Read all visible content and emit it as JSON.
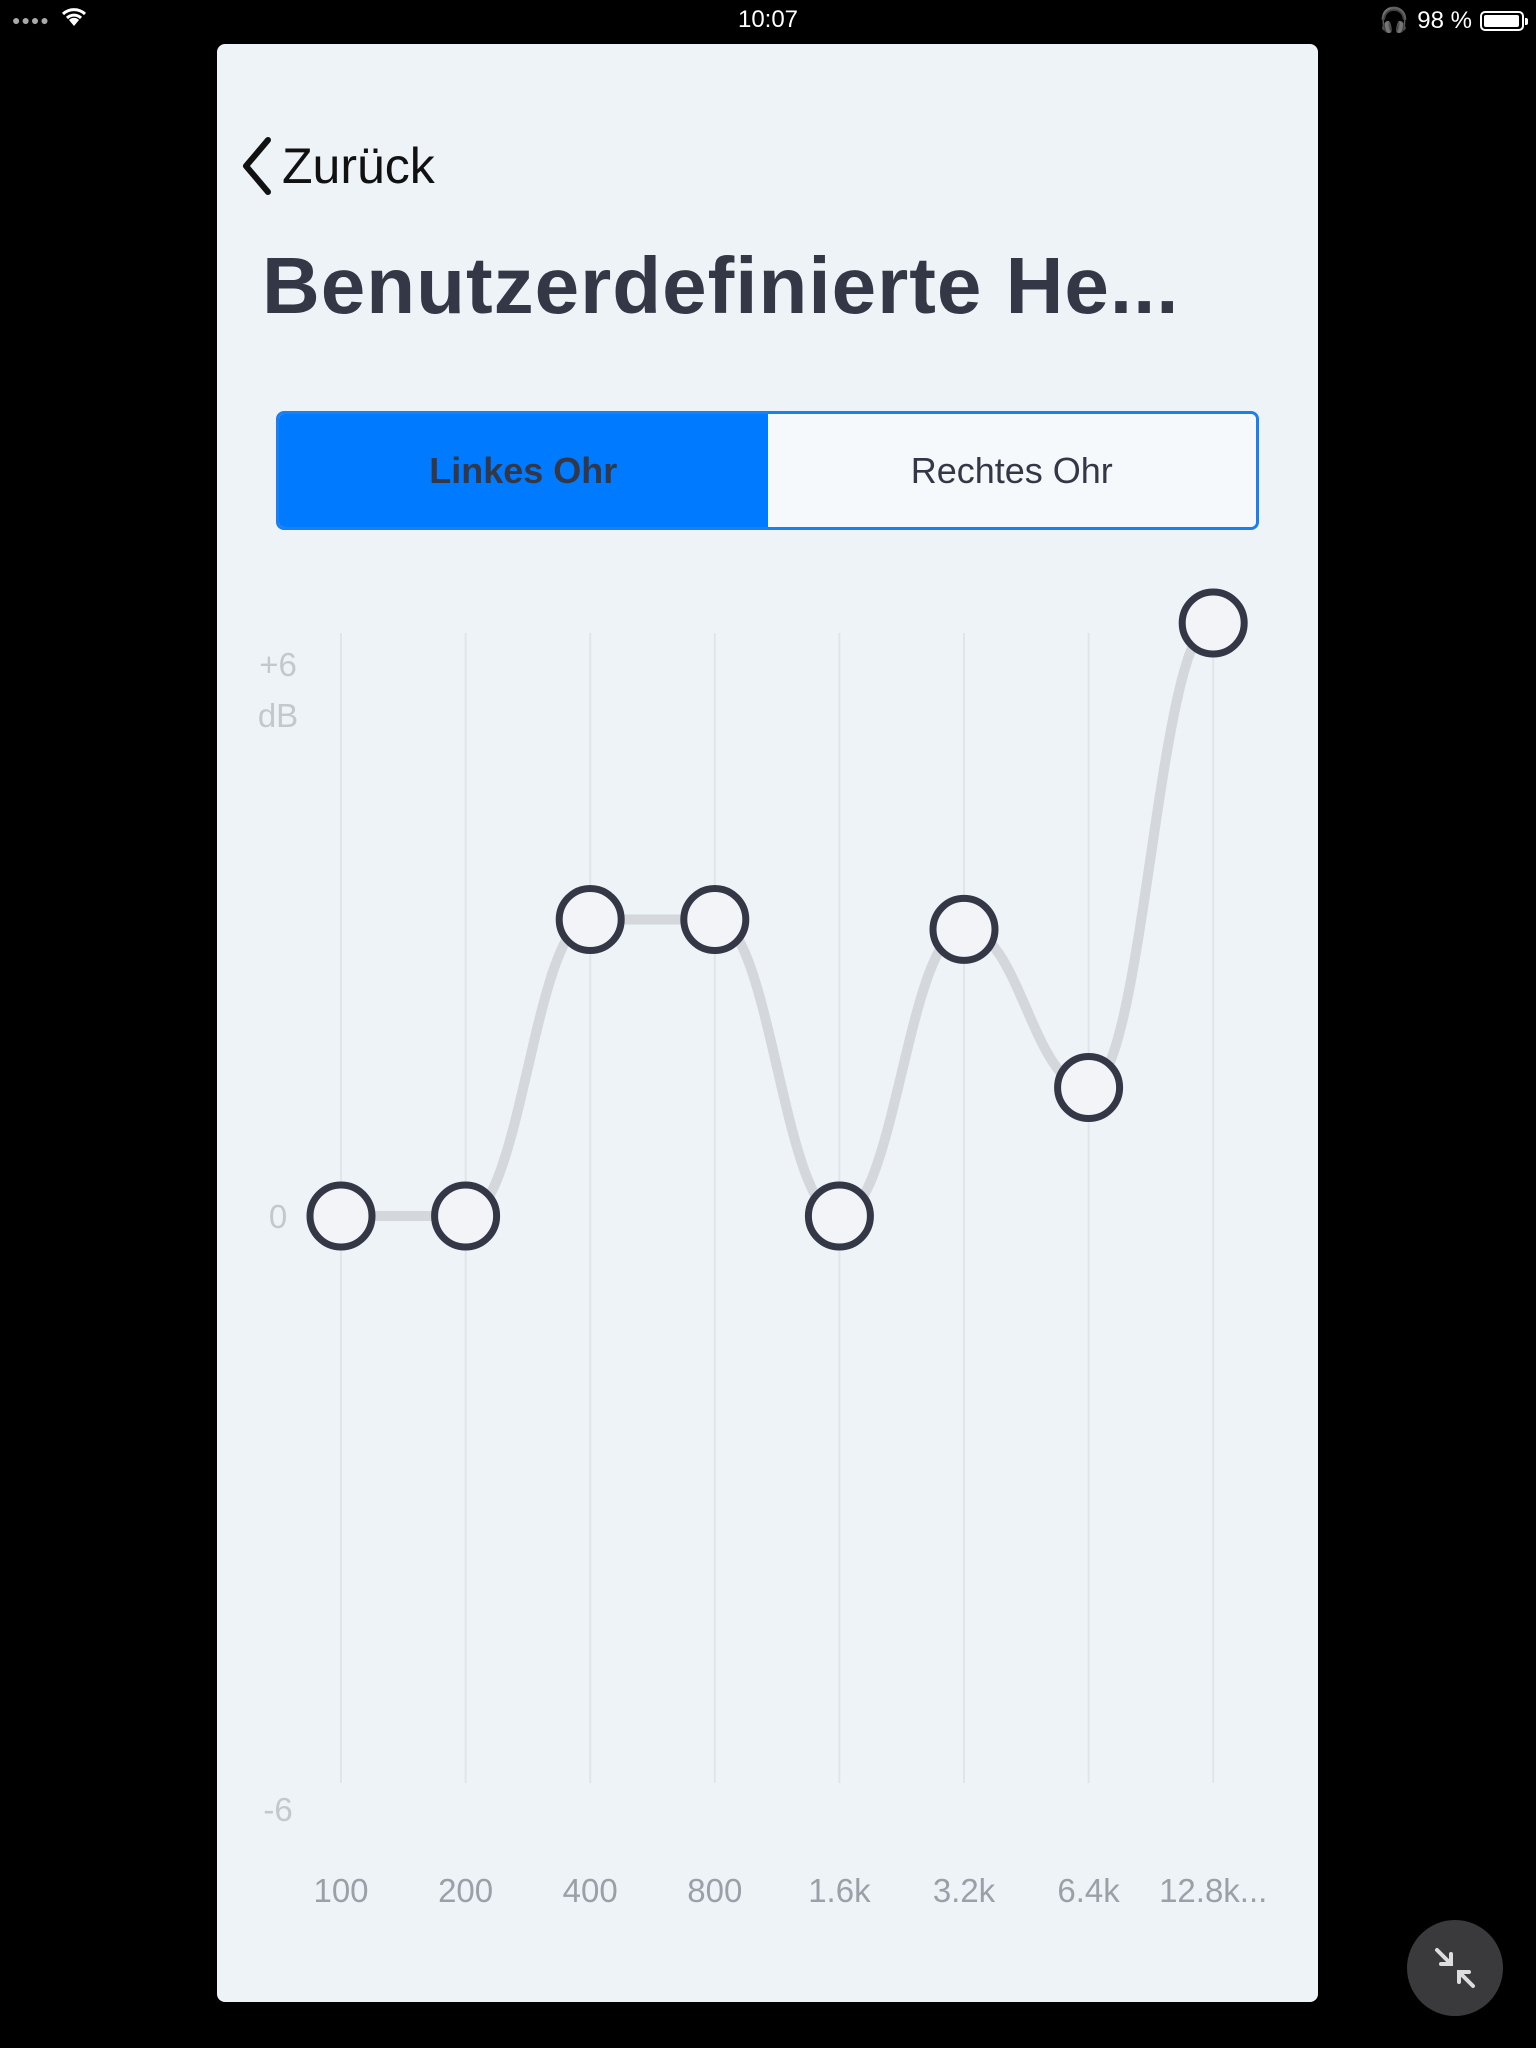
{
  "status_bar": {
    "time": "10:07",
    "battery": "98 %",
    "battery_level": 0.98
  },
  "nav": {
    "back_label": "Zurück"
  },
  "page": {
    "title": "Benutzerdefinierte He..."
  },
  "segmented": {
    "left": "Linkes Ohr",
    "right": "Rechtes Ohr",
    "selected": "Linkes Ohr",
    "accent": "#007aff"
  },
  "chart_data": {
    "type": "line",
    "categories": [
      "100",
      "200",
      "400",
      "800",
      "1.6k",
      "3.2k",
      "6.4k",
      "12.8k..."
    ],
    "values": [
      0,
      0,
      3,
      3,
      0,
      2.9,
      1.3,
      6
    ],
    "ylim": [
      -6,
      6
    ],
    "ytick_labels": {
      "top": "+6",
      "unit": "dB",
      "mid": "0",
      "bottom": "-6"
    },
    "grid": "vertical",
    "line_color": "#d4d7db",
    "point_color": "#343746"
  },
  "icons": {
    "back": "chevron-left-icon",
    "fullscreen": "collapse-arrows-icon"
  }
}
